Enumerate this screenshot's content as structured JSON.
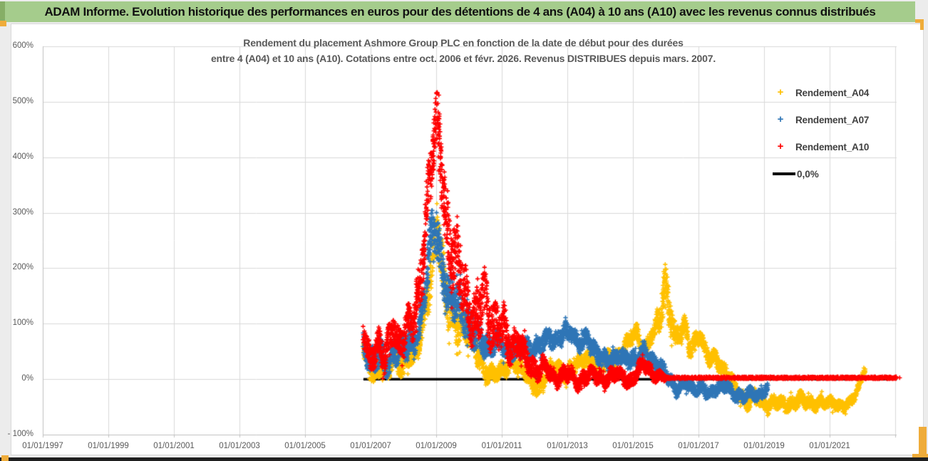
{
  "header": {
    "title": "ADAM Informe. Evolution historique des performances en euros pour des détentions de 4 ans (A04) à 10 ans (A10) avec les revenus connus distribués"
  },
  "colors": {
    "a04": "#FFC000",
    "a07": "#2E75B6",
    "a10": "#FF0000",
    "zero_line": "#000000",
    "header_green": "#A5CC8C",
    "header_green_dark": "#86AE66",
    "gold_accent": "#EFAC3A",
    "grid": "#D9D9D9",
    "axis": "#BFBFBF",
    "title_text": "#595959",
    "axis_text": "#595959",
    "legend_text": "#404040",
    "bottom_bar": "#1F1F1F",
    "page_bg": "#ECECEC",
    "panel_bg": "#FFFFFF"
  },
  "chart_data": {
    "type": "scatter",
    "marker": "+",
    "title_line1": "Rendement du placement Ashmore Group PLC en fonction de la date de début pour des durées",
    "title_line2": "entre 4 (A04) et 10 ans (A10). Cotations entre oct. 2006 et févr. 2026. Revenus DISTRIBUES depuis mars. 2007.",
    "x_axis": {
      "tick_labels": [
        "01/01/1997",
        "01/01/1999",
        "01/01/2001",
        "01/01/2003",
        "01/01/2005",
        "01/01/2007",
        "01/01/2009",
        "01/01/2011",
        "01/01/2013",
        "01/01/2015",
        "01/01/2017",
        "01/01/2019",
        "01/01/2021"
      ],
      "tick_years": [
        1997,
        1999,
        2001,
        2003,
        2005,
        2007,
        2009,
        2011,
        2013,
        2015,
        2017,
        2019,
        2021
      ],
      "gridline_years": [
        1997,
        1999,
        2001,
        2003,
        2005,
        2007,
        2009,
        2011,
        2013,
        2015,
        2017,
        2019,
        2021,
        2023
      ],
      "year_min": 1996.9,
      "year_max": 2023.2
    },
    "y_axis": {
      "tick_labels": [
        "600%",
        "500%",
        "400%",
        "300%",
        "200%",
        "100%",
        "0%",
        "- 100%"
      ],
      "tick_values": [
        600,
        500,
        400,
        300,
        200,
        100,
        0,
        -100
      ],
      "min": -100,
      "max": 600,
      "grid": true
    },
    "legend_position": "right",
    "zero_line": {
      "label": "0,0%",
      "color": "#000000",
      "from_year": 2006.78,
      "to_year": 2023.05,
      "value_pct": 0
    },
    "series": [
      {
        "name": "Rendement_A04",
        "color": "#FFC000",
        "start_year": 2006.78,
        "end_year": 2022.07,
        "trend_pct": [
          [
            2006.78,
            48
          ],
          [
            2006.95,
            25
          ],
          [
            2007.1,
            8
          ],
          [
            2007.3,
            30
          ],
          [
            2007.5,
            12
          ],
          [
            2007.7,
            35
          ],
          [
            2007.9,
            25
          ],
          [
            2008.1,
            45
          ],
          [
            2008.3,
            38
          ],
          [
            2008.5,
            65
          ],
          [
            2008.7,
            140
          ],
          [
            2008.9,
            235
          ],
          [
            2009.05,
            270
          ],
          [
            2009.2,
            190
          ],
          [
            2009.35,
            130
          ],
          [
            2009.55,
            115
          ],
          [
            2009.75,
            100
          ],
          [
            2009.95,
            85
          ],
          [
            2010.15,
            62
          ],
          [
            2010.35,
            35
          ],
          [
            2010.55,
            12
          ],
          [
            2010.75,
            5
          ],
          [
            2010.95,
            12
          ],
          [
            2011.15,
            25
          ],
          [
            2011.35,
            32
          ],
          [
            2011.55,
            18
          ],
          [
            2011.75,
            8
          ],
          [
            2011.95,
            -5
          ],
          [
            2012.15,
            -18
          ],
          [
            2012.35,
            5
          ],
          [
            2012.55,
            18
          ],
          [
            2012.75,
            25
          ],
          [
            2012.95,
            8
          ],
          [
            2013.15,
            18
          ],
          [
            2013.35,
            28
          ],
          [
            2013.55,
            42
          ],
          [
            2013.75,
            30
          ],
          [
            2013.95,
            22
          ],
          [
            2014.15,
            32
          ],
          [
            2014.35,
            45
          ],
          [
            2014.55,
            38
          ],
          [
            2014.75,
            55
          ],
          [
            2014.95,
            75
          ],
          [
            2015.1,
            88
          ],
          [
            2015.25,
            62
          ],
          [
            2015.4,
            52
          ],
          [
            2015.55,
            75
          ],
          [
            2015.7,
            92
          ],
          [
            2015.85,
            120
          ],
          [
            2015.97,
            172
          ],
          [
            2016.05,
            150
          ],
          [
            2016.15,
            115
          ],
          [
            2016.3,
            68
          ],
          [
            2016.45,
            85
          ],
          [
            2016.6,
            95
          ],
          [
            2016.75,
            55
          ],
          [
            2016.9,
            70
          ],
          [
            2017.05,
            78
          ],
          [
            2017.2,
            48
          ],
          [
            2017.35,
            35
          ],
          [
            2017.5,
            45
          ],
          [
            2017.65,
            28
          ],
          [
            2017.8,
            12
          ],
          [
            2017.95,
            2
          ],
          [
            2018.1,
            -15
          ],
          [
            2018.3,
            -30
          ],
          [
            2018.5,
            -42
          ],
          [
            2018.7,
            -32
          ],
          [
            2018.9,
            -42
          ],
          [
            2019.1,
            -48
          ],
          [
            2019.3,
            -38
          ],
          [
            2019.5,
            -45
          ],
          [
            2019.7,
            -50
          ],
          [
            2019.9,
            -42
          ],
          [
            2020.1,
            -32
          ],
          [
            2020.3,
            -42
          ],
          [
            2020.5,
            -48
          ],
          [
            2020.7,
            -38
          ],
          [
            2020.9,
            -42
          ],
          [
            2021.1,
            -45
          ],
          [
            2021.3,
            -52
          ],
          [
            2021.5,
            -45
          ],
          [
            2021.7,
            -35
          ],
          [
            2021.85,
            -22
          ],
          [
            2021.95,
            -5
          ],
          [
            2022.07,
            20
          ]
        ],
        "spread_pct": [
          [
            2006.78,
            18
          ],
          [
            2008.5,
            20
          ],
          [
            2008.9,
            48
          ],
          [
            2009.35,
            38
          ],
          [
            2010.15,
            22
          ],
          [
            2011.0,
            14
          ],
          [
            2015.7,
            14
          ],
          [
            2015.97,
            40
          ],
          [
            2016.3,
            20
          ],
          [
            2017.0,
            14
          ],
          [
            2021.0,
            11
          ],
          [
            2022.07,
            9
          ]
        ]
      },
      {
        "name": "Rendement_A07",
        "color": "#2E75B6",
        "start_year": 2006.78,
        "end_year": 2019.1,
        "trend_pct": [
          [
            2006.78,
            65
          ],
          [
            2006.95,
            40
          ],
          [
            2007.1,
            25
          ],
          [
            2007.3,
            45
          ],
          [
            2007.5,
            28
          ],
          [
            2007.7,
            55
          ],
          [
            2007.9,
            45
          ],
          [
            2008.1,
            60
          ],
          [
            2008.3,
            70
          ],
          [
            2008.5,
            95
          ],
          [
            2008.7,
            180
          ],
          [
            2008.85,
            255
          ],
          [
            2009.0,
            268
          ],
          [
            2009.15,
            215
          ],
          [
            2009.3,
            165
          ],
          [
            2009.5,
            140
          ],
          [
            2009.7,
            130
          ],
          [
            2009.9,
            110
          ],
          [
            2010.1,
            85
          ],
          [
            2010.35,
            65
          ],
          [
            2010.6,
            55
          ],
          [
            2010.8,
            75
          ],
          [
            2011.0,
            60
          ],
          [
            2011.2,
            42
          ],
          [
            2011.45,
            55
          ],
          [
            2011.7,
            62
          ],
          [
            2011.95,
            45
          ],
          [
            2012.2,
            65
          ],
          [
            2012.45,
            80
          ],
          [
            2012.65,
            62
          ],
          [
            2012.9,
            85
          ],
          [
            2013.1,
            90
          ],
          [
            2013.35,
            62
          ],
          [
            2013.6,
            72
          ],
          [
            2013.85,
            52
          ],
          [
            2014.1,
            38
          ],
          [
            2014.35,
            28
          ],
          [
            2014.6,
            45
          ],
          [
            2014.85,
            38
          ],
          [
            2015.1,
            30
          ],
          [
            2015.35,
            52
          ],
          [
            2015.6,
            35
          ],
          [
            2015.85,
            20
          ],
          [
            2016.1,
            0
          ],
          [
            2016.35,
            -18
          ],
          [
            2016.6,
            -5
          ],
          [
            2016.85,
            -22
          ],
          [
            2017.1,
            -12
          ],
          [
            2017.35,
            -28
          ],
          [
            2017.6,
            -18
          ],
          [
            2017.85,
            -8
          ],
          [
            2018.1,
            -28
          ],
          [
            2018.35,
            -35
          ],
          [
            2018.6,
            -22
          ],
          [
            2018.85,
            -30
          ],
          [
            2019.1,
            -18
          ]
        ],
        "spread_pct": [
          [
            2006.78,
            22
          ],
          [
            2008.5,
            25
          ],
          [
            2008.85,
            42
          ],
          [
            2009.3,
            42
          ],
          [
            2010.1,
            28
          ],
          [
            2011.0,
            16
          ],
          [
            2015.6,
            15
          ],
          [
            2016.1,
            12
          ],
          [
            2019.1,
            10
          ]
        ]
      },
      {
        "name": "Rendement_A10",
        "color": "#FF0000",
        "start_year": 2006.78,
        "end_year": 2016.05,
        "trend_pct": [
          [
            2006.78,
            80
          ],
          [
            2006.9,
            55
          ],
          [
            2007.0,
            30
          ],
          [
            2007.1,
            55
          ],
          [
            2007.25,
            70
          ],
          [
            2007.4,
            35
          ],
          [
            2007.55,
            60
          ],
          [
            2007.7,
            95
          ],
          [
            2007.85,
            65
          ],
          [
            2008.0,
            80
          ],
          [
            2008.15,
            105
          ],
          [
            2008.3,
            90
          ],
          [
            2008.45,
            140
          ],
          [
            2008.6,
            230
          ],
          [
            2008.75,
            345
          ],
          [
            2008.9,
            425
          ],
          [
            2009.0,
            455
          ],
          [
            2009.1,
            420
          ],
          [
            2009.2,
            340
          ],
          [
            2009.35,
            260
          ],
          [
            2009.5,
            230
          ],
          [
            2009.65,
            235
          ],
          [
            2009.8,
            170
          ],
          [
            2009.95,
            125
          ],
          [
            2010.1,
            95
          ],
          [
            2010.25,
            130
          ],
          [
            2010.45,
            165
          ],
          [
            2010.6,
            105
          ],
          [
            2010.75,
            80
          ],
          [
            2010.9,
            95
          ],
          [
            2011.05,
            110
          ],
          [
            2011.2,
            70
          ],
          [
            2011.35,
            50
          ],
          [
            2011.5,
            65
          ],
          [
            2011.7,
            45
          ],
          [
            2011.9,
            25
          ],
          [
            2012.1,
            12
          ],
          [
            2012.3,
            22
          ],
          [
            2012.5,
            8
          ],
          [
            2012.7,
            0
          ],
          [
            2012.9,
            12
          ],
          [
            2013.1,
            5
          ],
          [
            2013.3,
            -8
          ],
          [
            2013.5,
            5
          ],
          [
            2013.7,
            12
          ],
          [
            2013.9,
            2
          ],
          [
            2014.1,
            -5
          ],
          [
            2014.3,
            8
          ],
          [
            2014.5,
            12
          ],
          [
            2014.7,
            0
          ],
          [
            2014.9,
            -8
          ],
          [
            2015.1,
            15
          ],
          [
            2015.3,
            30
          ],
          [
            2015.5,
            12
          ],
          [
            2015.7,
            5
          ],
          [
            2015.9,
            8
          ],
          [
            2016.05,
            2
          ]
        ],
        "spread_pct": [
          [
            2006.78,
            25
          ],
          [
            2008.3,
            28
          ],
          [
            2008.6,
            55
          ],
          [
            2009.0,
            50
          ],
          [
            2009.35,
            62
          ],
          [
            2009.65,
            55
          ],
          [
            2010.0,
            40
          ],
          [
            2010.45,
            55
          ],
          [
            2011.05,
            35
          ],
          [
            2011.9,
            20
          ],
          [
            2012.5,
            14
          ],
          [
            2015.5,
            13
          ],
          [
            2015.95,
            8
          ],
          [
            2016.05,
            2
          ]
        ],
        "peak_outliers_pct": [
          [
            2009.08,
            512
          ],
          [
            2009.05,
            497
          ],
          [
            2009.1,
            478
          ],
          [
            2009.12,
            460
          ]
        ],
        "flat_zero_from_year": 2016.06,
        "flat_zero_to_year": 2023.05,
        "flat_zero_value_pct": 0
      }
    ]
  }
}
